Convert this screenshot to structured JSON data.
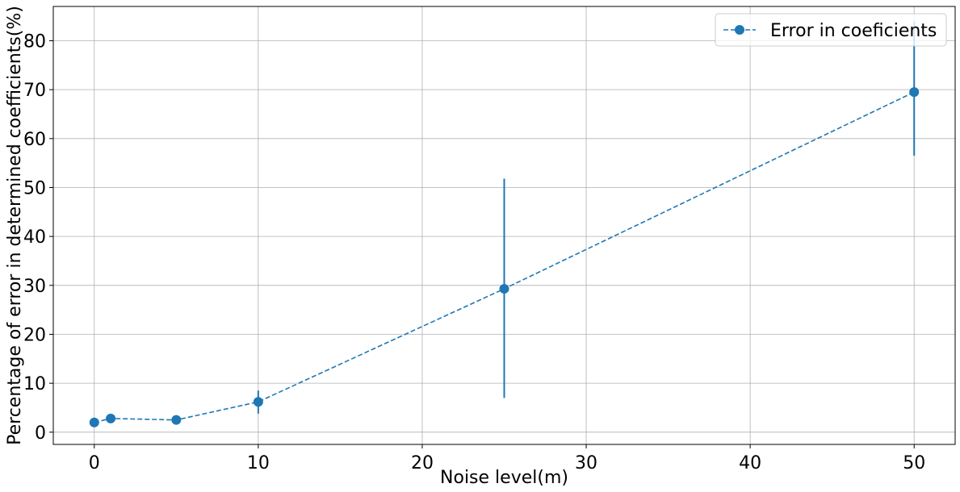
{
  "chart_data": {
    "type": "line",
    "title": "",
    "xlabel": "Noise level(m)",
    "ylabel": "Percentage of error in determined coefficients(%)",
    "xlim": [
      -2.5,
      52.5
    ],
    "ylim": [
      -2.5,
      87
    ],
    "xticks": [
      0,
      10,
      20,
      30,
      40,
      50
    ],
    "yticks": [
      0,
      10,
      20,
      30,
      40,
      50,
      60,
      70,
      80
    ],
    "grid": true,
    "legend_placement": "top-right",
    "series": [
      {
        "name": "Error in coeficients",
        "color": "#1f77b4",
        "line_style": "dashed",
        "marker": "circle",
        "x": [
          0,
          1,
          5,
          10,
          25,
          50
        ],
        "y": [
          2.0,
          2.8,
          2.5,
          6.2,
          29.3,
          69.5
        ],
        "err_low": [
          2.0,
          2.8,
          2.5,
          3.8,
          7.0,
          56.5
        ],
        "err_high": [
          2.0,
          2.8,
          2.5,
          8.5,
          51.8,
          84.0
        ]
      }
    ]
  }
}
